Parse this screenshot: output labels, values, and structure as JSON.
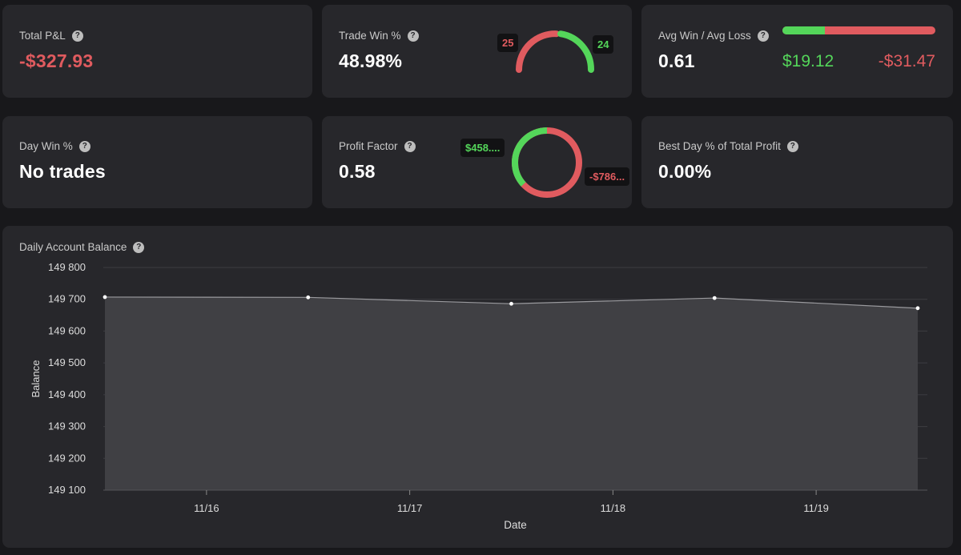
{
  "stats": {
    "total_pnl": {
      "label": "Total P&L",
      "help": "?",
      "value": "-$327.93"
    },
    "trade_win": {
      "label": "Trade Win %",
      "help": "?",
      "value": "48.98%",
      "losses": "25",
      "wins": "24"
    },
    "avg_win_loss": {
      "label": "Avg Win / Avg Loss",
      "help": "?",
      "value": "0.61",
      "avg_win": "$19.12",
      "avg_loss": "-$31.47"
    },
    "day_win": {
      "label": "Day Win %",
      "help": "?",
      "value": "No trades"
    },
    "profit_factor": {
      "label": "Profit Factor",
      "help": "?",
      "value": "0.58",
      "gross_profit": "$458....",
      "gross_loss": "-$786..."
    },
    "best_day": {
      "label": "Best Day % of Total Profit",
      "help": "?",
      "value": "0.00%"
    }
  },
  "colors": {
    "green": "#54d65a",
    "red": "#e05b5f",
    "card": "#27272b"
  },
  "chart_data": {
    "type": "area",
    "title": "Daily Account Balance",
    "help": "?",
    "xlabel": "Date",
    "ylabel": "Balance",
    "ylim": [
      149100,
      149800
    ],
    "yticks": [
      149800,
      149700,
      149600,
      149500,
      149400,
      149300,
      149200,
      149100
    ],
    "ytick_labels": [
      "149 800",
      "149 700",
      "149 600",
      "149 500",
      "149 400",
      "149 300",
      "149 200",
      "149 100"
    ],
    "xticks": [
      "11/16",
      "11/17",
      "11/18",
      "11/19"
    ],
    "xtick_index": [
      0.5,
      1.5,
      2.5,
      3.5
    ],
    "x": [
      0,
      1,
      2,
      3,
      4
    ],
    "values": [
      149707,
      149706,
      149686,
      149704,
      149672
    ],
    "avg_win_ratio": 0.28,
    "profit_share": 0.368
  }
}
